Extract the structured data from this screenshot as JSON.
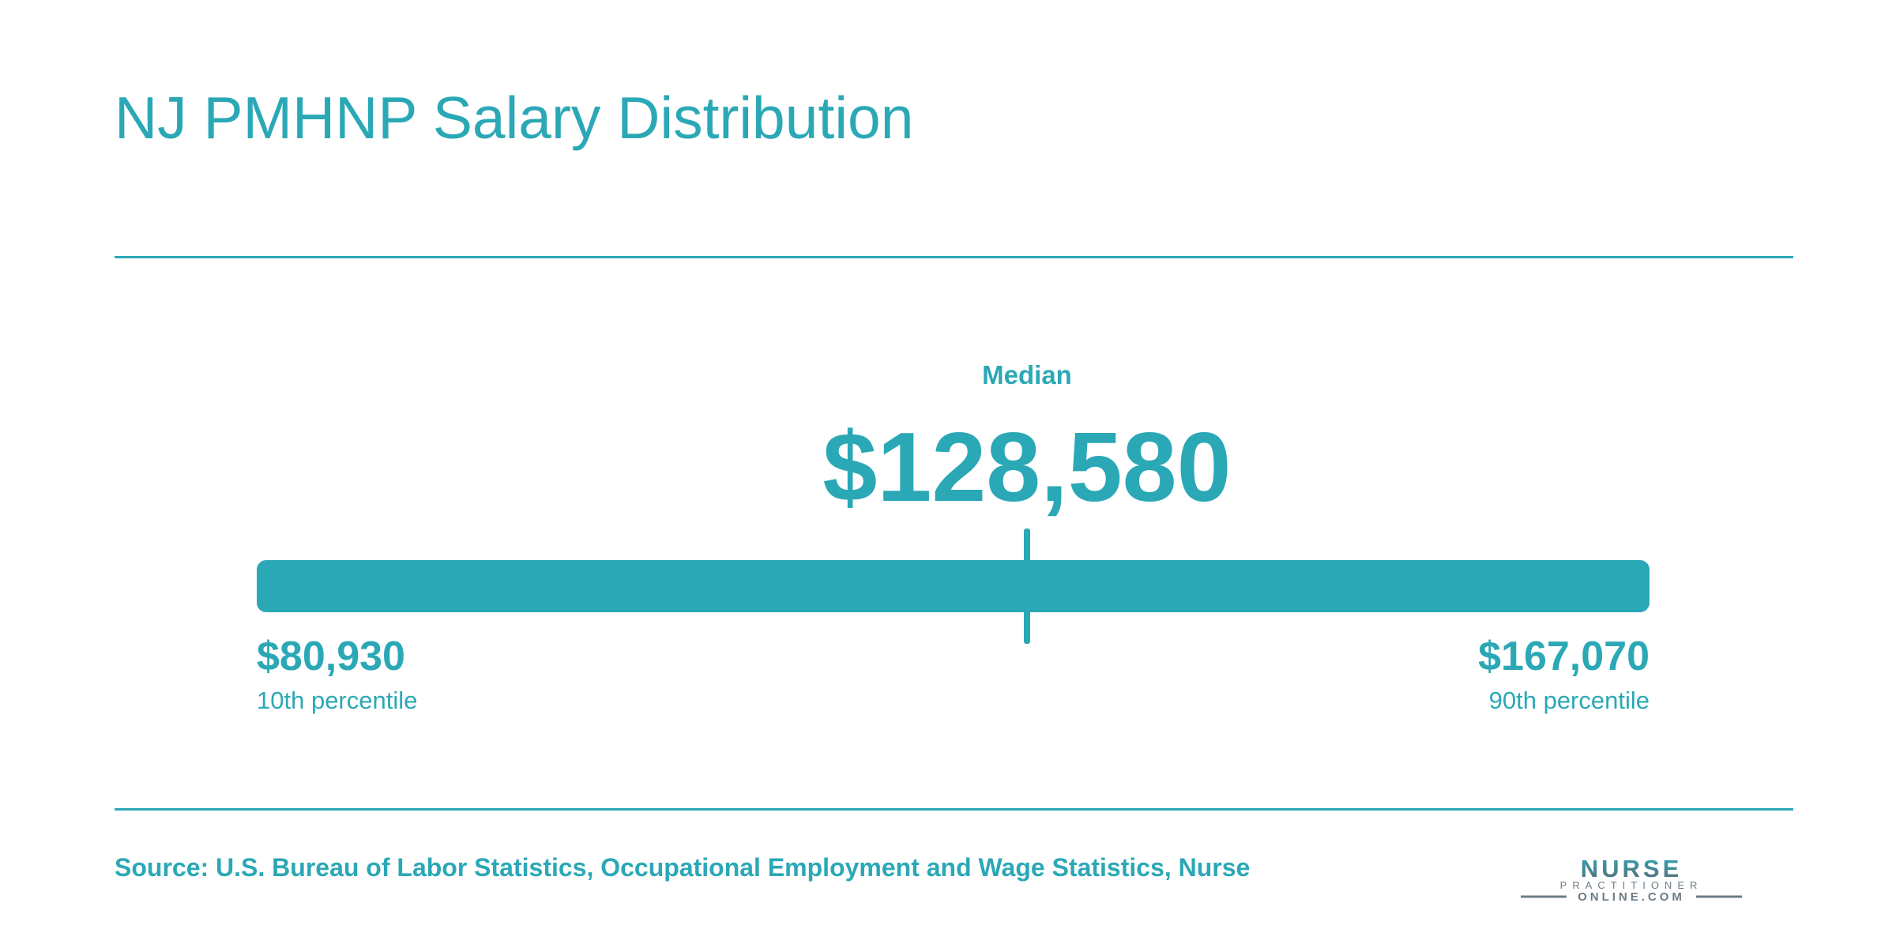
{
  "title": "NJ PMHNP Salary Distribution",
  "chart_data": {
    "type": "range",
    "min": 80930,
    "median": 128580,
    "max": 167070,
    "median_label": "Median",
    "median_display": "$128,580",
    "min_display": "$80,930",
    "min_label": "10th percentile",
    "max_display": "$167,070",
    "max_label": "90th percentile"
  },
  "source": "Source: U.S. Bureau of Labor Statistics, Occupational Employment and Wage Statistics, Nurse",
  "logo": {
    "line1": "NURSE",
    "line2": "PRACTITIONER",
    "line3": "ONLINE.COM"
  },
  "colors": {
    "accent": "#2ba8b6",
    "logo_dark": "#5b6b74"
  }
}
